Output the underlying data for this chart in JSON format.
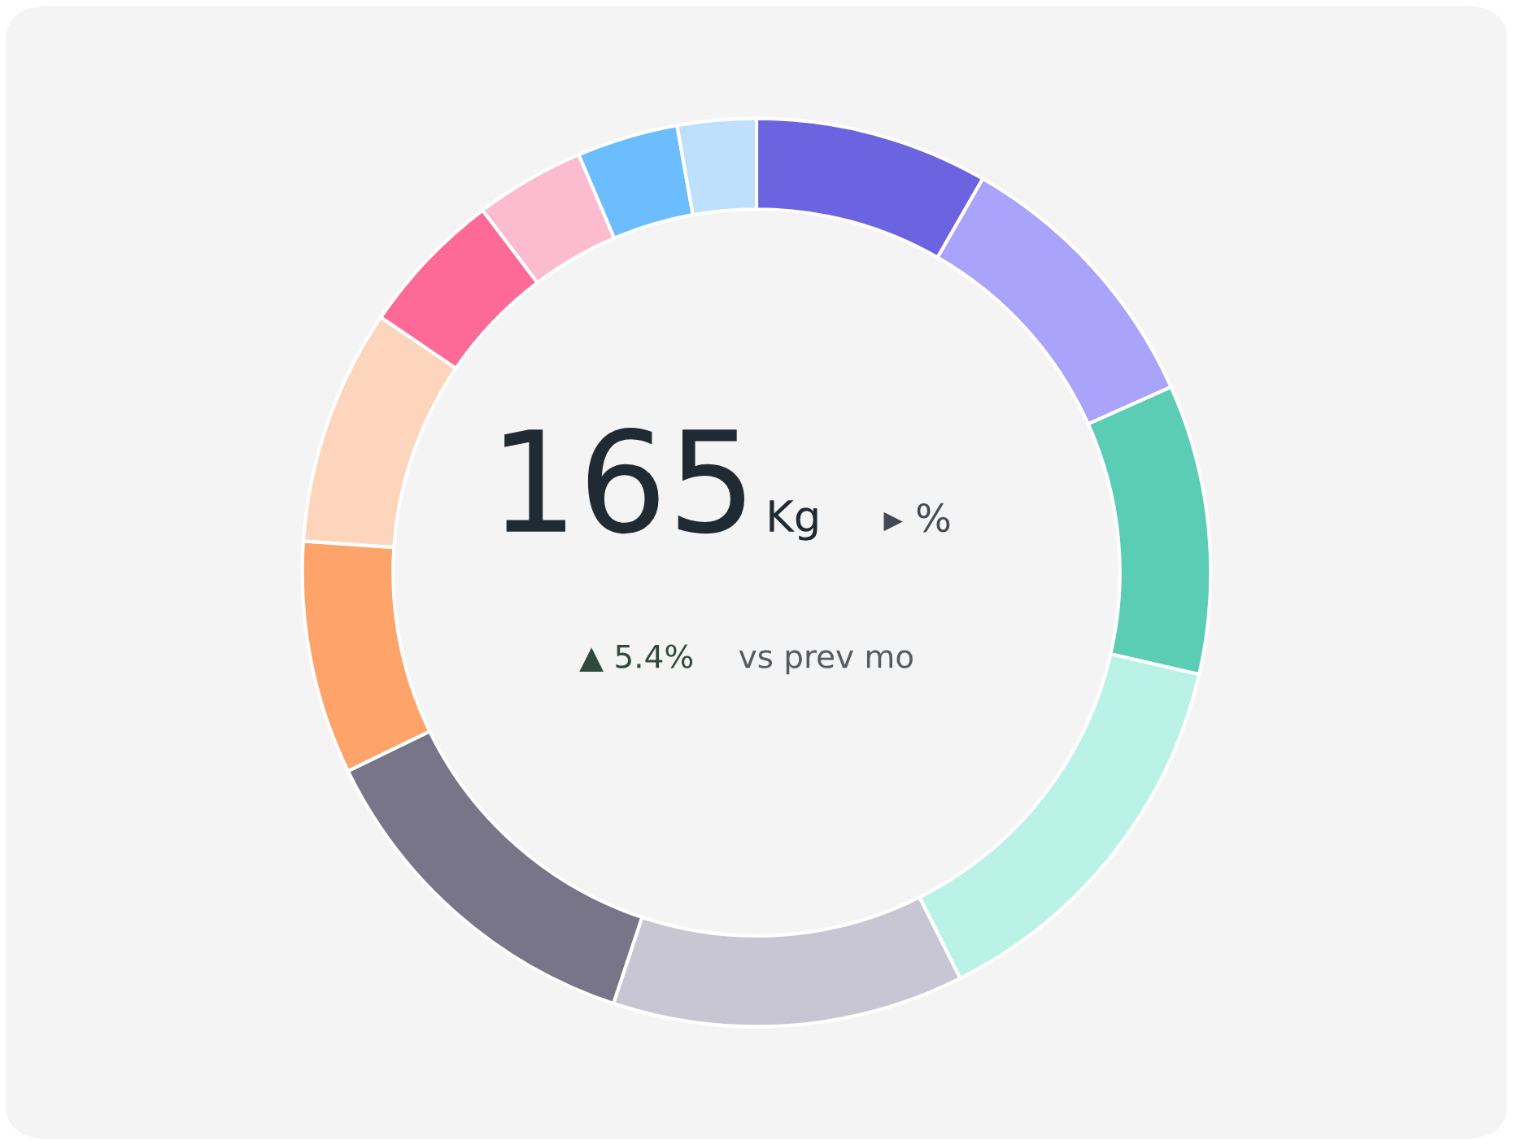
{
  "chart_data": {
    "type": "donut",
    "categories": [
      null,
      null,
      null,
      null,
      null,
      null,
      null,
      null,
      null,
      null,
      null,
      null
    ],
    "values": [
      8.3,
      10.0,
      10.3,
      14.0,
      12.5,
      12.7,
      8.3,
      8.4,
      5.2,
      3.9,
      3.6,
      2.8
    ],
    "colors": [
      "#6c63e0",
      "#a9a3fb",
      "#5ccdb5",
      "#bbf2e7",
      "#c8c6d2",
      "#787589",
      "#fea369",
      "#fcd5bc",
      "#fe6a97",
      "#fdbbd0",
      "#6bbdfe",
      "#bfe0fc"
    ],
    "annotations": [
      "165",
      "Kg",
      "▸ %",
      "▲ 5.4%",
      "vs prev mo"
    ]
  }
}
